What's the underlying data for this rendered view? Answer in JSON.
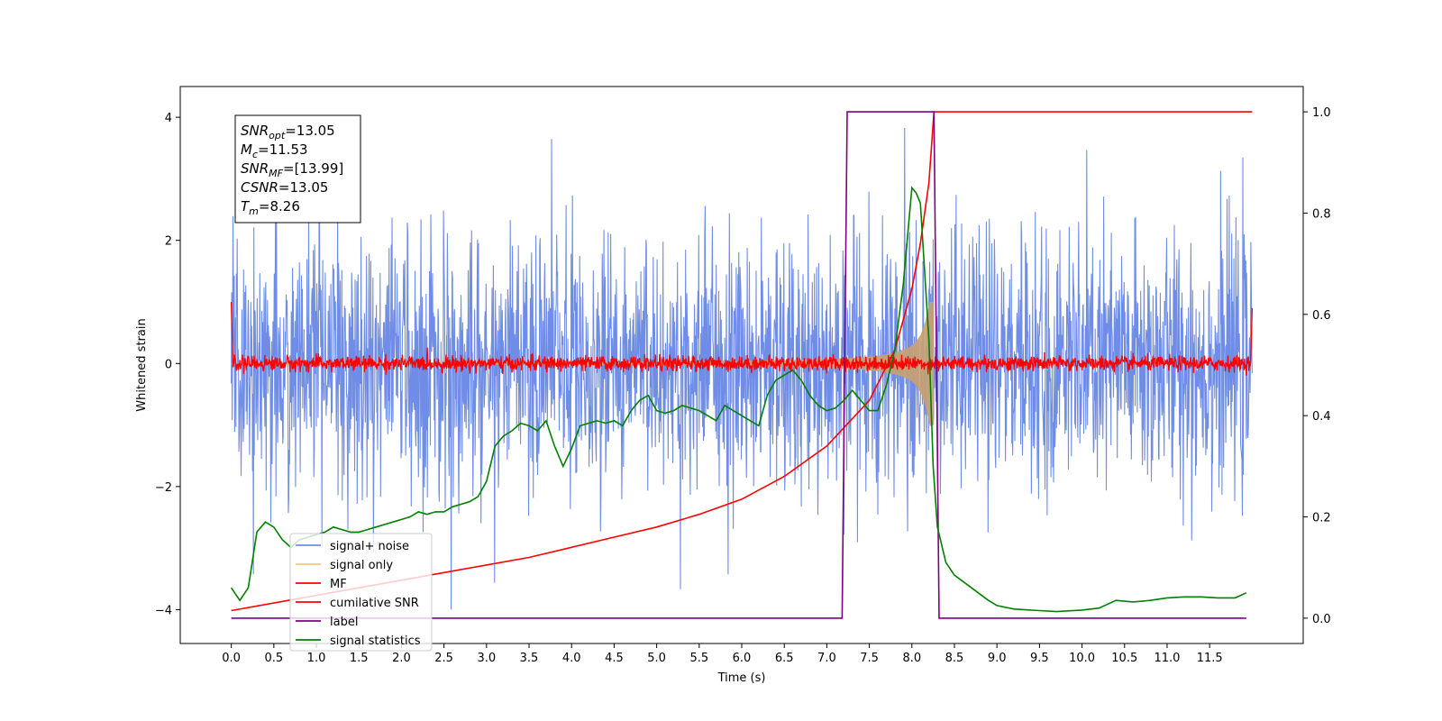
{
  "chart_data": {
    "type": "line",
    "xlabel": "Time (s)",
    "ylabel": "Whitened strain",
    "xlim": [
      -0.6,
      12.6
    ],
    "ylim": [
      -4.55,
      4.5
    ],
    "ylim_right": [
      -0.05,
      1.05
    ],
    "x_ticks": [
      "0.0",
      "0.5",
      "1.0",
      "1.5",
      "2.0",
      "2.5",
      "3.0",
      "3.5",
      "4.0",
      "4.5",
      "5.0",
      "5.5",
      "6.0",
      "6.5",
      "7.0",
      "7.5",
      "8.0",
      "8.5",
      "9.0",
      "9.5",
      "10.0",
      "10.5",
      "11.0",
      "11.5"
    ],
    "y_ticks": [
      "4",
      "2",
      "0",
      "−2",
      "−4"
    ],
    "y_ticks_right": [
      "1.0",
      "0.8",
      "0.6",
      "0.4",
      "0.2",
      "0.0"
    ],
    "annotation": {
      "lines": [
        {
          "base": "SNR",
          "sub": "opt",
          "rest": "=13.05"
        },
        {
          "base": "M",
          "sub": "c",
          "rest": "=11.53"
        },
        {
          "base": "SNR",
          "sub": "MF",
          "rest": "=[13.99]"
        },
        {
          "base": "CSNR",
          "sub": "",
          "rest": "=13.05"
        },
        {
          "base": "T",
          "sub": "m",
          "rest": "=8.26"
        }
      ]
    },
    "legend": {
      "location": "lower-left",
      "entries": [
        {
          "label": "signal+ noise",
          "color": "#6f8de6"
        },
        {
          "label": "signal only",
          "color": "#f5c77e"
        },
        {
          "label": "MF",
          "color": "#ff0000"
        },
        {
          "label": "cumilative SNR",
          "color": "#ff0000"
        },
        {
          "label": "label",
          "color": "#800080"
        },
        {
          "label": "signal statistics",
          "color": "#008000"
        }
      ]
    },
    "series": [
      {
        "name": "signal+ noise",
        "axis": "left",
        "color": "#6f8de6",
        "style": "noise",
        "x_range": [
          0.0,
          12.0
        ],
        "amplitude": 4.0
      },
      {
        "name": "signal only",
        "axis": "left",
        "color": "#c8a070",
        "style": "chirp",
        "x_range": [
          0.0,
          8.26
        ],
        "peak": 1.0
      },
      {
        "name": "MF",
        "axis": "left",
        "color": "#ff0000",
        "style": "noise",
        "x_range": [
          0.0,
          12.0
        ],
        "amplitude": 0.2
      },
      {
        "name": "cumilative SNR",
        "axis": "right",
        "color": "#ff0000",
        "x": [
          0.0,
          0.5,
          1.0,
          1.5,
          2.0,
          2.5,
          3.0,
          3.5,
          4.0,
          4.5,
          5.0,
          5.5,
          6.0,
          6.5,
          7.0,
          7.5,
          7.8,
          8.0,
          8.1,
          8.2,
          8.26,
          12.0
        ],
        "y": [
          0.015,
          0.03,
          0.045,
          0.06,
          0.075,
          0.09,
          0.105,
          0.12,
          0.14,
          0.16,
          0.18,
          0.205,
          0.235,
          0.28,
          0.34,
          0.43,
          0.53,
          0.65,
          0.74,
          0.86,
          1.0,
          1.0
        ]
      },
      {
        "name": "label",
        "axis": "right",
        "color": "#800080",
        "x": [
          0.0,
          7.18,
          7.24,
          8.26,
          8.32,
          11.93
        ],
        "y": [
          0.0,
          0.0,
          1.0,
          1.0,
          0.0,
          0.0
        ]
      },
      {
        "name": "signal statistics",
        "axis": "right",
        "color": "#008000",
        "x": [
          0.0,
          0.1,
          0.2,
          0.3,
          0.4,
          0.5,
          0.6,
          0.7,
          0.8,
          0.9,
          1.0,
          1.1,
          1.2,
          1.3,
          1.4,
          1.5,
          1.6,
          1.7,
          1.8,
          1.9,
          2.0,
          2.1,
          2.2,
          2.3,
          2.4,
          2.5,
          2.6,
          2.7,
          2.8,
          2.9,
          3.0,
          3.1,
          3.2,
          3.3,
          3.4,
          3.5,
          3.6,
          3.7,
          3.8,
          3.9,
          4.0,
          4.1,
          4.2,
          4.3,
          4.4,
          4.5,
          4.6,
          4.7,
          4.8,
          4.9,
          5.0,
          5.1,
          5.2,
          5.3,
          5.4,
          5.5,
          5.6,
          5.7,
          5.8,
          5.9,
          6.0,
          6.1,
          6.2,
          6.3,
          6.4,
          6.5,
          6.6,
          6.7,
          6.8,
          6.9,
          7.0,
          7.1,
          7.2,
          7.3,
          7.4,
          7.5,
          7.6,
          7.7,
          7.8,
          7.9,
          8.0,
          8.05,
          8.1,
          8.2,
          8.25,
          8.3,
          8.4,
          8.5,
          8.7,
          8.9,
          9.0,
          9.2,
          9.5,
          9.7,
          10.0,
          10.2,
          10.4,
          10.6,
          10.8,
          11.0,
          11.2,
          11.4,
          11.6,
          11.8,
          11.93
        ],
        "y": [
          0.06,
          0.035,
          0.06,
          0.17,
          0.19,
          0.18,
          0.155,
          0.14,
          0.155,
          0.16,
          0.165,
          0.17,
          0.18,
          0.175,
          0.17,
          0.17,
          0.175,
          0.18,
          0.185,
          0.19,
          0.195,
          0.2,
          0.21,
          0.205,
          0.21,
          0.21,
          0.22,
          0.225,
          0.23,
          0.24,
          0.27,
          0.34,
          0.36,
          0.37,
          0.385,
          0.38,
          0.37,
          0.39,
          0.34,
          0.3,
          0.335,
          0.38,
          0.385,
          0.39,
          0.385,
          0.39,
          0.38,
          0.41,
          0.43,
          0.44,
          0.41,
          0.405,
          0.41,
          0.42,
          0.415,
          0.41,
          0.4,
          0.39,
          0.42,
          0.41,
          0.4,
          0.39,
          0.38,
          0.44,
          0.47,
          0.48,
          0.49,
          0.47,
          0.44,
          0.42,
          0.41,
          0.415,
          0.43,
          0.45,
          0.43,
          0.41,
          0.41,
          0.46,
          0.53,
          0.66,
          0.85,
          0.84,
          0.82,
          0.55,
          0.3,
          0.18,
          0.11,
          0.085,
          0.06,
          0.035,
          0.025,
          0.018,
          0.015,
          0.013,
          0.016,
          0.02,
          0.035,
          0.032,
          0.035,
          0.04,
          0.042,
          0.042,
          0.04,
          0.04,
          0.05
        ]
      }
    ]
  }
}
